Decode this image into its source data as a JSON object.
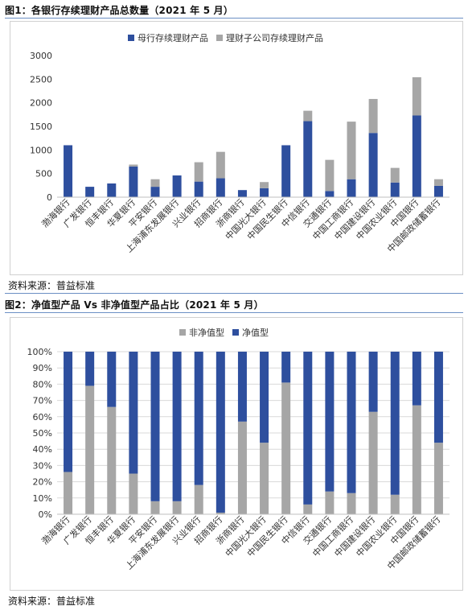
{
  "figures": [
    {
      "title": "图1：各银行存续理财产品总数量（2021 年 5 月）",
      "source": "资料来源：普益标准"
    },
    {
      "title": "图2：净值型产品 Vs 非净值型产品占比（2021 年 5 月）",
      "source": "资料来源：普益标准"
    }
  ],
  "colors": {
    "blue": "#2e4f9e",
    "gray": "#a6a6a6",
    "grid": "#d9d9d9",
    "rule": "#6b8fc4"
  },
  "chart_data": [
    {
      "type": "bar",
      "stacked": true,
      "categories": [
        "渤海银行",
        "广发银行",
        "恒丰银行",
        "华夏银行",
        "平安银行",
        "上海浦东发展银行",
        "兴业银行",
        "招商银行",
        "浙商银行",
        "中国光大银行",
        "中国民生银行",
        "中信银行",
        "交通银行",
        "中国工商银行",
        "中国建设银行",
        "中国农业银行",
        "中国银行",
        "中国邮政储蓄银行"
      ],
      "series": [
        {
          "name": "母行存续理财产品",
          "color": "#2e4f9e",
          "values": [
            1100,
            220,
            290,
            650,
            220,
            460,
            330,
            400,
            150,
            190,
            1100,
            1610,
            130,
            380,
            1360,
            310,
            1730,
            240
          ]
        },
        {
          "name": "理财子公司存续理财产品",
          "color": "#a6a6a6",
          "values": [
            0,
            0,
            0,
            40,
            160,
            0,
            410,
            560,
            0,
            130,
            0,
            220,
            660,
            1220,
            720,
            310,
            810,
            140
          ]
        }
      ],
      "yticks": [
        "0",
        "500",
        "1000",
        "1500",
        "2000",
        "2500",
        "3000"
      ],
      "ylim": [
        0,
        3000
      ],
      "legend": "top",
      "grid": false
    },
    {
      "type": "bar",
      "stacked": true,
      "percent": true,
      "categories": [
        "渤海银行",
        "广发银行",
        "恒丰银行",
        "华夏银行",
        "平安银行",
        "上海浦东发展银行",
        "兴业银行",
        "招商银行",
        "浙商银行",
        "中国光大银行",
        "中国民生银行",
        "中信银行",
        "交通银行",
        "中国工商银行",
        "中国建设银行",
        "中国农业银行",
        "中国银行",
        "中国邮政储蓄银行"
      ],
      "series": [
        {
          "name": "非净值型",
          "color": "#a6a6a6",
          "values": [
            26,
            79,
            66,
            25,
            8,
            8,
            18,
            1,
            57,
            44,
            81,
            6,
            14,
            13,
            63,
            12,
            67,
            44
          ]
        },
        {
          "name": "净值型",
          "color": "#2e4f9e",
          "values": [
            74,
            21,
            34,
            75,
            92,
            92,
            82,
            99,
            43,
            56,
            19,
            94,
            86,
            87,
            37,
            88,
            33,
            56
          ]
        }
      ],
      "yticks": [
        "0%",
        "10%",
        "20%",
        "30%",
        "40%",
        "50%",
        "60%",
        "70%",
        "80%",
        "90%",
        "100%"
      ],
      "ylim": [
        0,
        100
      ],
      "legend": "top",
      "grid": true
    }
  ]
}
